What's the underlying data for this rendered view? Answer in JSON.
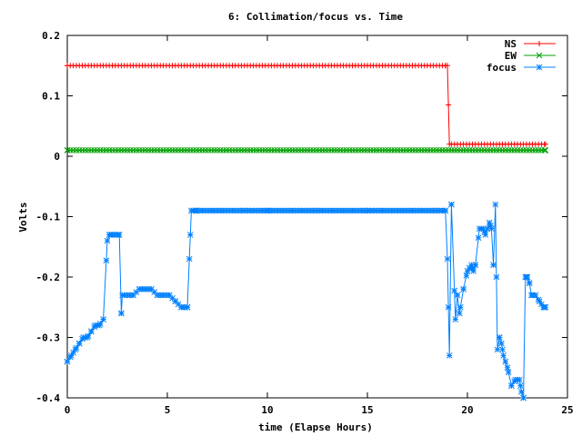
{
  "chart_data": {
    "type": "line",
    "title": "6: Collimation/focus vs. Time",
    "xlabel": "time (Elapse Hours)",
    "ylabel": "Volts",
    "xlim": [
      0,
      25
    ],
    "ylim": [
      -0.4,
      0.2
    ],
    "x_ticks": [
      0,
      5,
      10,
      15,
      20,
      25
    ],
    "x_tick_labels": [
      "0",
      "5",
      "10",
      "15",
      "20",
      "25"
    ],
    "y_ticks": [
      0.2,
      0.1,
      0,
      -0.1,
      -0.2,
      -0.3,
      -0.4
    ],
    "y_tick_labels": [
      "0.2",
      "0.1",
      "0",
      "-0.1",
      "-0.2",
      "-0.3",
      "-0.4"
    ],
    "grid": false,
    "legend_position": "top-right",
    "series": [
      {
        "name": "NS",
        "color": "#ff0000",
        "marker": "plus",
        "x": [
          0,
          18.9,
          19.0,
          19.1,
          23.9
        ],
        "values": [
          0.15,
          0.15,
          0.15,
          0.02,
          0.02
        ],
        "marker_step": 0.15
      },
      {
        "name": "EW",
        "color": "#00a000",
        "marker": "cross",
        "x": [
          0,
          23.9
        ],
        "values": [
          0.01,
          0.01
        ],
        "marker_step": 0.15
      },
      {
        "name": "focus",
        "color": "#0080ff",
        "marker": "star",
        "x": [
          0.0,
          0.2,
          0.4,
          0.6,
          0.8,
          1.0,
          1.2,
          1.4,
          1.6,
          1.8,
          2.0,
          2.1,
          2.2,
          2.4,
          2.6,
          2.7,
          2.75,
          3.0,
          3.3,
          3.6,
          3.9,
          4.2,
          4.5,
          4.8,
          5.1,
          5.4,
          5.7,
          6.0,
          6.1,
          6.2,
          6.4,
          10.0,
          15.0,
          18.9,
          19.0,
          19.1,
          19.2,
          19.4,
          19.5,
          19.6,
          19.8,
          20.0,
          20.2,
          20.3,
          20.4,
          20.6,
          20.8,
          20.9,
          21.1,
          21.2,
          21.3,
          21.4,
          21.5,
          21.6,
          21.7,
          21.8,
          22.0,
          22.2,
          22.4,
          22.6,
          22.7,
          22.8,
          22.9,
          23.0,
          23.1,
          23.2,
          23.4,
          23.6,
          23.8,
          23.9
        ],
        "values": [
          -0.34,
          -0.33,
          -0.32,
          -0.31,
          -0.3,
          -0.3,
          -0.29,
          -0.28,
          -0.28,
          -0.27,
          -0.14,
          -0.13,
          -0.13,
          -0.13,
          -0.13,
          -0.26,
          -0.23,
          -0.23,
          -0.23,
          -0.22,
          -0.22,
          -0.22,
          -0.23,
          -0.23,
          -0.23,
          -0.24,
          -0.25,
          -0.25,
          -0.17,
          -0.09,
          -0.09,
          -0.09,
          -0.09,
          -0.09,
          -0.17,
          -0.33,
          -0.08,
          -0.27,
          -0.23,
          -0.26,
          -0.22,
          -0.19,
          -0.18,
          -0.19,
          -0.18,
          -0.12,
          -0.12,
          -0.13,
          -0.11,
          -0.12,
          -0.18,
          -0.08,
          -0.32,
          -0.3,
          -0.31,
          -0.33,
          -0.35,
          -0.38,
          -0.37,
          -0.37,
          -0.39,
          -0.4,
          -0.2,
          -0.2,
          -0.21,
          -0.23,
          -0.23,
          -0.24,
          -0.25,
          -0.25
        ],
        "marker_step": 0.15
      }
    ]
  }
}
